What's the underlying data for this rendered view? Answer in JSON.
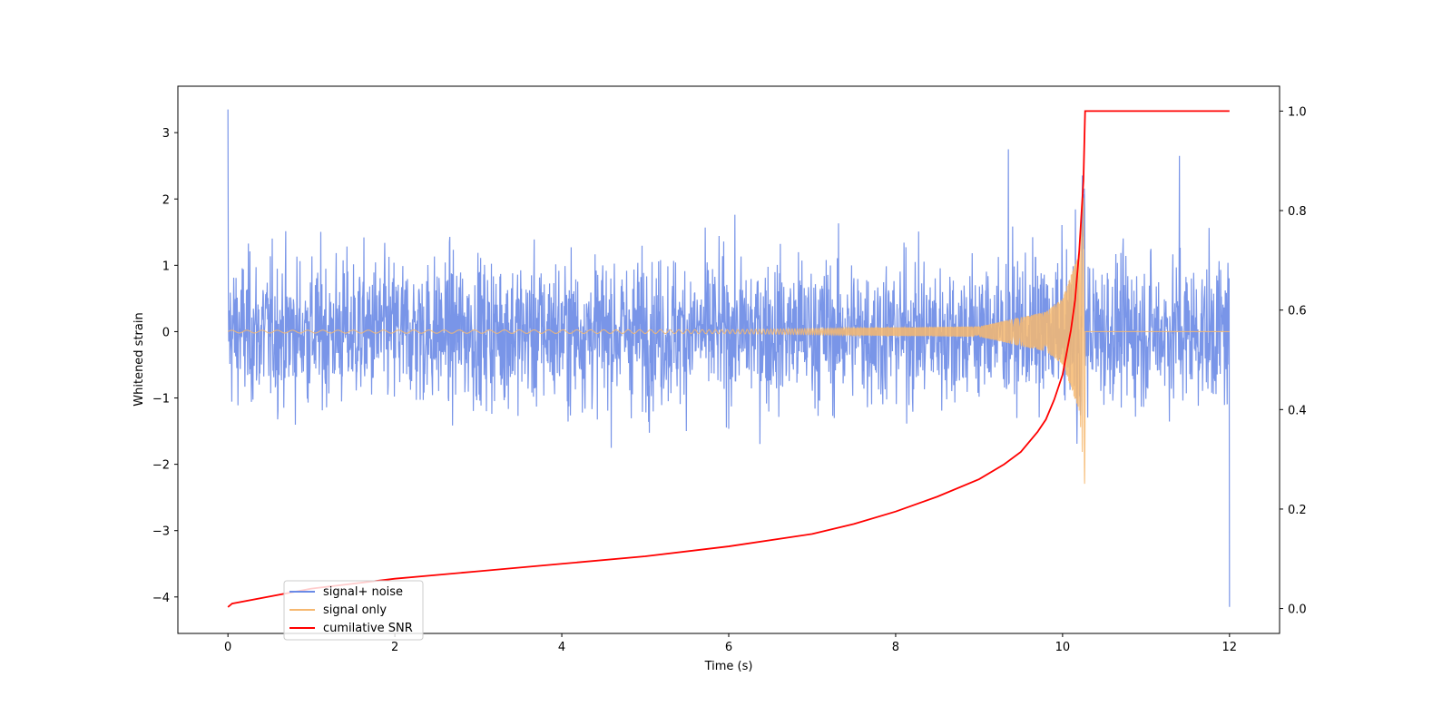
{
  "chart_data": {
    "type": "line",
    "title": "",
    "xlabel": "Time (s)",
    "ylabel": "Whitened strain",
    "y2label": "",
    "xlim": [
      -0.6,
      12.6
    ],
    "ylim": [
      -4.55,
      3.7
    ],
    "y2lim": [
      -0.05,
      1.05
    ],
    "xticks": [
      0,
      2,
      4,
      6,
      8,
      10,
      12
    ],
    "xtick_labels": [
      "0",
      "2",
      "4",
      "6",
      "8",
      "10",
      "12"
    ],
    "yticks": [
      -4,
      -3,
      -2,
      -1,
      0,
      1,
      2,
      3
    ],
    "ytick_labels": [
      "−4",
      "−3",
      "−2",
      "−1",
      "0",
      "1",
      "2",
      "3"
    ],
    "y2ticks": [
      0.0,
      0.2,
      0.4,
      0.6,
      0.8,
      1.0
    ],
    "y2tick_labels": [
      "0.0",
      "0.2",
      "0.4",
      "0.6",
      "0.8",
      "1.0"
    ],
    "grid": false,
    "legend_position": "lower-left",
    "merger_time": 10.27,
    "series": [
      {
        "name": "signal+ noise",
        "axis": "left",
        "color": "#6a8ae6",
        "noise_sigma": 0.55,
        "peak_points": [
          [
            0.0,
            3.35
          ],
          [
            9.35,
            2.75
          ],
          [
            11.4,
            2.65
          ],
          [
            12.0,
            -4.15
          ]
        ]
      },
      {
        "name": "signal only",
        "axis": "left",
        "color": "#f6b870",
        "amplitude_points": [
          [
            0.0,
            0.02
          ],
          [
            6.0,
            0.03
          ],
          [
            9.0,
            0.08
          ],
          [
            9.8,
            0.3
          ],
          [
            10.0,
            0.5
          ],
          [
            10.2,
            1.2
          ],
          [
            10.27,
            2.4
          ]
        ]
      },
      {
        "name": "cumilative SNR",
        "axis": "right",
        "color": "#ff0000",
        "points": [
          [
            0.0,
            0.003
          ],
          [
            0.05,
            0.01
          ],
          [
            1,
            0.04
          ],
          [
            2,
            0.06
          ],
          [
            3,
            0.075
          ],
          [
            4,
            0.09
          ],
          [
            5,
            0.105
          ],
          [
            6,
            0.125
          ],
          [
            7,
            0.15
          ],
          [
            7.5,
            0.17
          ],
          [
            8,
            0.195
          ],
          [
            8.5,
            0.225
          ],
          [
            9,
            0.26
          ],
          [
            9.3,
            0.29
          ],
          [
            9.5,
            0.315
          ],
          [
            9.7,
            0.355
          ],
          [
            9.8,
            0.38
          ],
          [
            9.9,
            0.42
          ],
          [
            10.0,
            0.47
          ],
          [
            10.1,
            0.56
          ],
          [
            10.15,
            0.62
          ],
          [
            10.2,
            0.72
          ],
          [
            10.25,
            0.86
          ],
          [
            10.27,
            1.0
          ],
          [
            12.0,
            1.0
          ]
        ]
      }
    ]
  }
}
